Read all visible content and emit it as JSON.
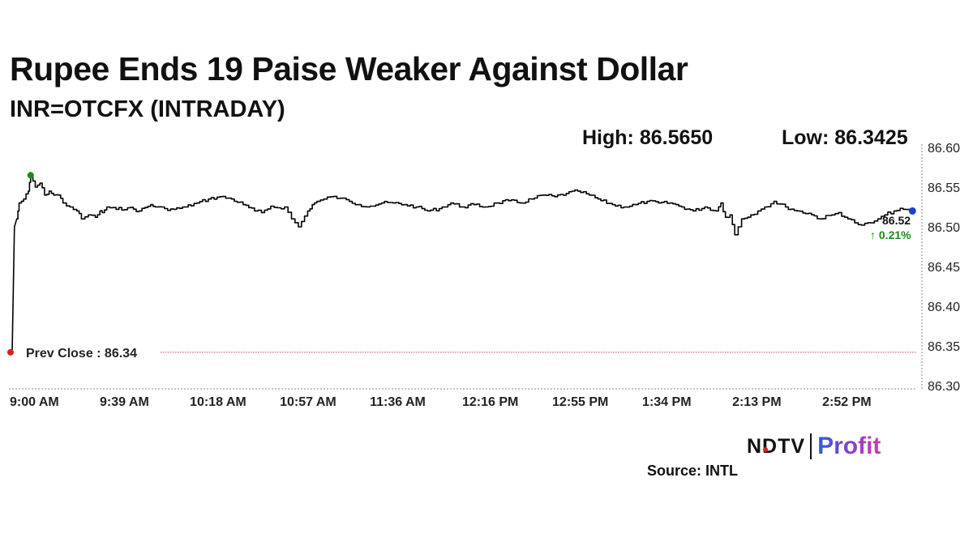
{
  "title": "Rupee Ends 19 Paise Weaker Against Dollar",
  "subtitle": "INR=OTCFX (INTRADAY)",
  "stats": {
    "high": "High: 86.5650",
    "low": "Low: 86.3425"
  },
  "source": "Source: INTL",
  "logo": {
    "ndtv": "NDTV",
    "profit": "Profit"
  },
  "chart_data": {
    "type": "line",
    "title": "Rupee Ends 19 Paise Weaker Against Dollar",
    "subtitle": "INR=OTCFX (INTRADAY)",
    "x_tick_labels": [
      "9:00 AM",
      "9:39 AM",
      "10:18 AM",
      "10:57 AM",
      "11:36 AM",
      "12:16 PM",
      "12:55 PM",
      "1:34 PM",
      "2:13 PM",
      "2:52 PM"
    ],
    "x_ticks_min": [
      0,
      39,
      78,
      117,
      156,
      196,
      235,
      274,
      313,
      352
    ],
    "x_range_min": [
      0,
      392
    ],
    "y_ticks": [
      86.3,
      86.35,
      86.4,
      86.45,
      86.5,
      86.55,
      86.6
    ],
    "ylim": [
      86.3,
      86.6
    ],
    "y_axis_side": "right",
    "grid": false,
    "series": [
      {
        "color": "#000000",
        "x_min": [
          0,
          1,
          2,
          3,
          5,
          7,
          8,
          10,
          12,
          14,
          16,
          18,
          20,
          22,
          25,
          28,
          30,
          33,
          36,
          38,
          39,
          41,
          45,
          50,
          55,
          60,
          62,
          66,
          70,
          75,
          80,
          85,
          90,
          95,
          100,
          105,
          108,
          112,
          115,
          118,
          121,
          124,
          128,
          130,
          132,
          135,
          138,
          142,
          146,
          150,
          155,
          160,
          165,
          170,
          175,
          180,
          185,
          190,
          195,
          200,
          205,
          210,
          215,
          220,
          225,
          230,
          235,
          240,
          245,
          250,
          255,
          260,
          265,
          270,
          275,
          280,
          285,
          290,
          295,
          300,
          305,
          307,
          309,
          311,
          313,
          316,
          320,
          323,
          326,
          330,
          335,
          340,
          345,
          350,
          355,
          358,
          362,
          365,
          368,
          372,
          375,
          378,
          382,
          386,
          390
        ],
        "y": [
          86.342,
          86.5,
          86.51,
          86.53,
          86.535,
          86.545,
          86.565,
          86.55,
          86.555,
          86.54,
          86.545,
          86.54,
          86.54,
          86.53,
          86.525,
          86.52,
          86.51,
          86.515,
          86.512,
          86.52,
          86.518,
          86.525,
          86.522,
          86.524,
          86.52,
          86.528,
          86.525,
          86.523,
          86.522,
          86.525,
          86.53,
          86.535,
          86.538,
          86.535,
          86.528,
          86.52,
          86.518,
          86.526,
          86.524,
          86.525,
          86.51,
          86.5,
          86.52,
          86.528,
          86.532,
          86.535,
          86.538,
          86.536,
          86.532,
          86.528,
          86.526,
          86.53,
          86.53,
          86.528,
          86.525,
          86.52,
          86.523,
          86.53,
          86.525,
          86.528,
          86.525,
          86.53,
          86.533,
          86.53,
          86.535,
          86.54,
          86.538,
          86.542,
          86.545,
          86.54,
          86.533,
          86.528,
          86.525,
          86.528,
          86.532,
          86.53,
          86.53,
          86.525,
          86.52,
          86.525,
          86.52,
          86.53,
          86.512,
          86.515,
          86.49,
          86.51,
          86.515,
          86.52,
          86.525,
          86.532,
          86.525,
          86.52,
          86.517,
          86.51,
          86.515,
          86.518,
          86.51,
          86.505,
          86.502,
          86.505,
          86.51,
          86.515,
          86.52,
          86.522,
          86.52
        ]
      }
    ],
    "annotations": {
      "prev_close_label": "Prev Close : 86.34",
      "prev_close_value": 86.342,
      "last_value_label": "86.52",
      "change_label": "↑ 0.21%"
    }
  }
}
